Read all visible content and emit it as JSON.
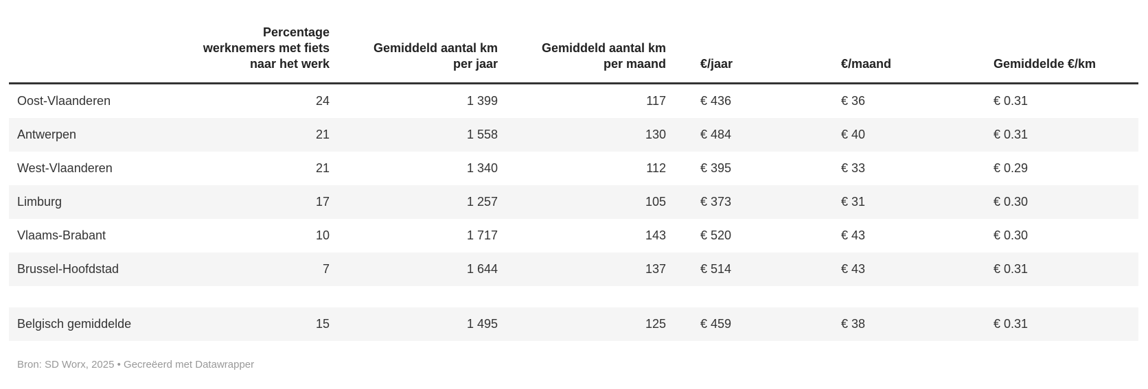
{
  "colors": {
    "background": "#ffffff",
    "row_stripe": "#f5f5f5",
    "header_border": "#333333",
    "body_text": "#333333",
    "header_text": "#222222",
    "footer_text": "#999999"
  },
  "header": {
    "cols": [
      "",
      "Percentage\nwerknemers met fiets\nnaar het werk",
      "Gemiddeld aantal km\nper jaar",
      "Gemiddeld aantal km\nper maand",
      "€/jaar",
      "€/maand",
      "Gemiddelde €/km"
    ]
  },
  "chart_data": {
    "type": "table",
    "columns": [
      "",
      "Percentage werknemers met fiets naar het werk",
      "Gemiddeld aantal km per jaar",
      "Gemiddeld aantal km per maand",
      "€/jaar",
      "€/maand",
      "Gemiddelde €/km"
    ],
    "rows": [
      [
        "Oost-Vlaanderen",
        "24",
        "1 399",
        "117",
        "€ 436",
        "€ 36",
        "€ 0.31"
      ],
      [
        "Antwerpen",
        "21",
        "1 558",
        "130",
        "€ 484",
        "€ 40",
        "€ 0.31"
      ],
      [
        "West-Vlaanderen",
        "21",
        "1 340",
        "112",
        "€ 395",
        "€ 33",
        "€ 0.29"
      ],
      [
        "Limburg",
        "17",
        "1 257",
        "105",
        "€ 373",
        "€ 31",
        "€ 0.30"
      ],
      [
        "Vlaams-Brabant",
        "10",
        "1 717",
        "143",
        "€ 520",
        "€ 43",
        "€ 0.30"
      ],
      [
        "Brussel-Hoofdstad",
        "7",
        "1 644",
        "137",
        "€ 514",
        "€ 43",
        "€ 0.31"
      ],
      [
        "",
        "",
        "",
        "",
        "",
        "",
        ""
      ],
      [
        "Belgisch gemiddelde",
        "15",
        "1 495",
        "125",
        "€ 459",
        "€ 38",
        "€ 0.31"
      ]
    ],
    "layout_hints": {
      "striped_rows": "even data rows shaded",
      "numeric_columns_2_to_4_alignment": "right",
      "euro_columns_alignment": "left",
      "header_rule": "thick dark border under header"
    }
  },
  "footer": {
    "source": "Bron: SD Worx, 2025",
    "separator": " • ",
    "credit": "Gecreëerd met Datawrapper"
  }
}
